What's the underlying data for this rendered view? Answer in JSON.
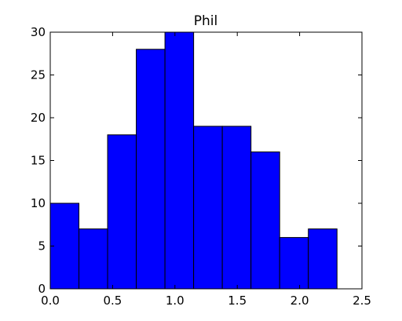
{
  "chart_data": {
    "type": "bar",
    "title": "Phil",
    "xlabel": "",
    "ylabel": "",
    "xlim": [
      0.0,
      2.5
    ],
    "ylim": [
      0,
      30
    ],
    "bin_edges": [
      0.0,
      0.23,
      0.46,
      0.69,
      0.92,
      1.15,
      1.38,
      1.61,
      1.84,
      2.07,
      2.3
    ],
    "values": [
      10,
      7,
      18,
      28,
      30,
      19,
      19,
      16,
      6,
      7
    ],
    "bar_color": "#0000ff",
    "edge_color": "#000000",
    "x_ticks": [
      "0.0",
      "0.5",
      "1.0",
      "1.5",
      "2.0",
      "2.5"
    ],
    "y_ticks": [
      "0",
      "5",
      "10",
      "15",
      "20",
      "25",
      "30"
    ],
    "grid": false,
    "legend": "none"
  }
}
